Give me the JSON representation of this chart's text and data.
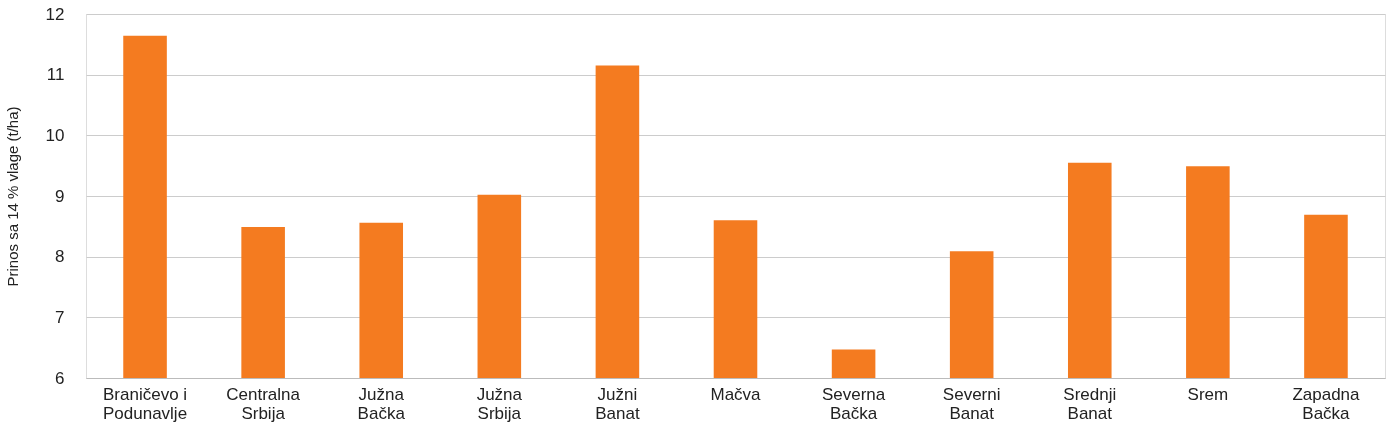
{
  "chart_data": {
    "type": "bar",
    "ylabel": "Prinos sa 14 % vlage (t/ha)",
    "categories": [
      "Braničevo i Podunavlje",
      "Centralna Srbija",
      "Južna Bačka",
      "Južna Srbija",
      "Južni Banat",
      "Mačva",
      "Severna Bačka",
      "Severni Banat",
      "Srednji Banat",
      "Srem",
      "Zapadna Bačka"
    ],
    "values": [
      11.64,
      8.49,
      8.56,
      9.02,
      11.15,
      8.6,
      6.47,
      8.09,
      9.55,
      9.49,
      8.69
    ],
    "color": "#f47b20",
    "ylim": [
      6,
      12
    ],
    "yticks": [
      6,
      7,
      8,
      9,
      10,
      11,
      12
    ],
    "grid": "y"
  }
}
